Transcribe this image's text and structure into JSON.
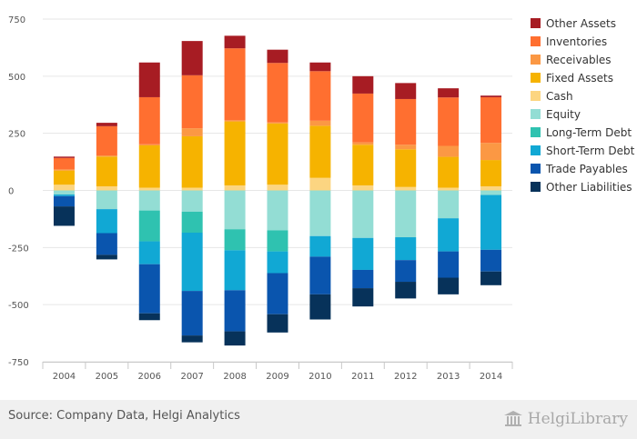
{
  "source_text": "Source: Company Data, Helgi Analytics",
  "logo_text": "HelgiLibrary",
  "chart_data": {
    "type": "bar",
    "stacked": true,
    "categories": [
      "2004",
      "2005",
      "2006",
      "2007",
      "2008",
      "2009",
      "2010",
      "2011",
      "2012",
      "2013",
      "2014"
    ],
    "ylim": [
      -750,
      750
    ],
    "yticks": [
      -750,
      -500,
      -250,
      0,
      250,
      500,
      750
    ],
    "grid": true,
    "legend_position": "right",
    "assets": [
      {
        "name": "Cash",
        "color": "#fcd581",
        "values": [
          25,
          18,
          12,
          12,
          22,
          25,
          55,
          22,
          15,
          12,
          18
        ]
      },
      {
        "name": "Fixed Assets",
        "color": "#f6b300",
        "values": [
          62,
          130,
          185,
          225,
          280,
          268,
          228,
          178,
          165,
          135,
          115
        ]
      },
      {
        "name": "Receivables",
        "color": "#fb9844",
        "values": [
          5,
          5,
          5,
          35,
          5,
          5,
          22,
          10,
          20,
          48,
          75
        ]
      },
      {
        "name": "Inventories",
        "color": "#ff6f30",
        "values": [
          50,
          128,
          206,
          232,
          315,
          260,
          217,
          214,
          200,
          212,
          200
        ]
      },
      {
        "name": "Other Assets",
        "color": "#a71c23",
        "values": [
          6,
          15,
          152,
          150,
          55,
          58,
          38,
          76,
          70,
          40,
          7
        ]
      }
    ],
    "liabilities": [
      {
        "name": "Equity",
        "color": "#93ddd4",
        "values": [
          -18,
          -82,
          -88,
          -93,
          -170,
          -175,
          -200,
          -208,
          -205,
          -122,
          -20
        ]
      },
      {
        "name": "Long-Term Debt",
        "color": "#2fc2b0",
        "values": [
          0,
          0,
          -135,
          -92,
          -92,
          -92,
          0,
          0,
          0,
          0,
          0
        ]
      },
      {
        "name": "Short-Term Debt",
        "color": "#11a8d4",
        "values": [
          -7,
          -105,
          -100,
          -255,
          -175,
          -95,
          -90,
          -140,
          -100,
          -145,
          -240
        ]
      },
      {
        "name": "Trade Payables",
        "color": "#0a55ae",
        "values": [
          -45,
          -95,
          -215,
          -195,
          -180,
          -180,
          -165,
          -80,
          -95,
          -115,
          -95
        ]
      },
      {
        "name": "Other Liabilities",
        "color": "#07325a",
        "values": [
          -85,
          -20,
          -30,
          -30,
          -62,
          -80,
          -110,
          -80,
          -73,
          -73,
          -60
        ]
      }
    ],
    "legend": [
      {
        "name": "Other Assets",
        "color": "#a71c23"
      },
      {
        "name": "Inventories",
        "color": "#ff6f30"
      },
      {
        "name": "Receivables",
        "color": "#fb9844"
      },
      {
        "name": "Fixed Assets",
        "color": "#f6b300"
      },
      {
        "name": "Cash",
        "color": "#fcd581"
      },
      {
        "name": "Equity",
        "color": "#93ddd4"
      },
      {
        "name": "Long-Term Debt",
        "color": "#2fc2b0"
      },
      {
        "name": "Short-Term Debt",
        "color": "#11a8d4"
      },
      {
        "name": "Trade Payables",
        "color": "#0a55ae"
      },
      {
        "name": "Other Liabilities",
        "color": "#07325a"
      }
    ]
  }
}
